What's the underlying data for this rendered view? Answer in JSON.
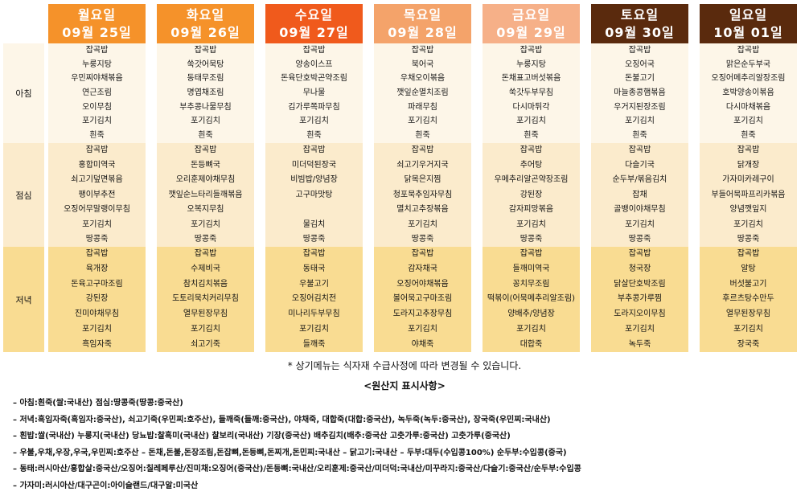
{
  "days": [
    {
      "day": "월요일",
      "date": "09월 25일",
      "header_color": "#f5922a",
      "breakfast": [
        "잡곡밥",
        "누룽지탕",
        "우민찌야채볶음",
        "연근조림",
        "오이무침",
        "포기김치",
        "흰죽"
      ],
      "lunch": [
        "잡곡밥",
        "홍합미역국",
        "쇠고기덮면볶음",
        "팽이부추전",
        "오징어무말랭이무침",
        "포기김치",
        "땅콩죽"
      ],
      "dinner": [
        "잡곡밥",
        "육개장",
        "돈육고구마조림",
        "강된장",
        "진미야채무침",
        "포기김치",
        "흑임자죽"
      ]
    },
    {
      "day": "화요일",
      "date": "09월 26일",
      "header_color": "#f5922a",
      "breakfast": [
        "잡곡밥",
        "쑥갓어묵탕",
        "동태무조림",
        "명엽채조림",
        "부추콩나물무침",
        "포기김치",
        "흰죽"
      ],
      "lunch": [
        "잡곡밥",
        "돈등뼈국",
        "오리훈제야채무침",
        "깻잎순느타리들깨볶음",
        "오복지무침",
        "포기김치",
        "땅콩죽"
      ],
      "dinner": [
        "잡곡밥",
        "수제비국",
        "참치김치볶음",
        "도토리묵치커리무침",
        "열무된장무침",
        "포기김치",
        "쇠고기죽"
      ]
    },
    {
      "day": "수요일",
      "date": "09월 27일",
      "header_color": "#f05a1c",
      "breakfast": [
        "잡곡밥",
        "양송이스프",
        "돈육단호박곤약조림",
        "무나물",
        "김가루쪽파무침",
        "포기김치",
        "흰죽"
      ],
      "lunch": [
        "잡곡밥",
        "미더덕된장국",
        "비빔밥/양념장",
        "고구마맛탕",
        "",
        "물김치",
        "땅콩죽"
      ],
      "dinner": [
        "잡곡밥",
        "동태국",
        "우불고기",
        "오징어김치전",
        "미나리두부무침",
        "포기김치",
        "들깨죽"
      ]
    },
    {
      "day": "목요일",
      "date": "09월 28일",
      "header_color": "#f4a36a",
      "breakfast": [
        "잡곡밥",
        "북어국",
        "우채오이볶음",
        "깻잎순멸치조림",
        "파래무침",
        "포기김치",
        "흰죽"
      ],
      "lunch": [
        "잡곡밥",
        "쇠고기우거지국",
        "닭목은지찜",
        "청포묵추임자무침",
        "멸치고추장볶음",
        "포기김치",
        "땅콩죽"
      ],
      "dinner": [
        "잡곡밥",
        "감자채국",
        "오징어야채볶음",
        "볼어묵고구마조림",
        "도라지고추장무침",
        "포기김치",
        "야채죽"
      ]
    },
    {
      "day": "금요일",
      "date": "09월 29일",
      "header_color": "#f6b088",
      "breakfast": [
        "잡곡밥",
        "누룽지탕",
        "돈채표고버섯볶음",
        "쑥갓두부무침",
        "다시마튀각",
        "포기김치",
        "흰죽"
      ],
      "lunch": [
        "잡곡밥",
        "추어탕",
        "우메추리알곤약장조림",
        "강된장",
        "감자피망볶음",
        "포기김치",
        "땅콩죽"
      ],
      "dinner": [
        "잡곡밥",
        "들깨미역국",
        "꽁치무조림",
        "떡볶이(어묵메추리알조림)",
        "양배추/양념장",
        "포기김치",
        "대합죽"
      ]
    },
    {
      "day": "토요일",
      "date": "09월 30일",
      "header_color": "#5a2a0d",
      "breakfast": [
        "잡곡밥",
        "오징어국",
        "돈불고기",
        "마늘종콩햄볶음",
        "우거지된장조림",
        "포기김치",
        "흰죽"
      ],
      "lunch": [
        "잡곡밥",
        "다슬기국",
        "순두부/볶음김치",
        "잡채",
        "골뱅이야채무침",
        "포기김치",
        "땅콩죽"
      ],
      "dinner": [
        "잡곡밥",
        "청국장",
        "닭살단호박조림",
        "부추콩가루찜",
        "도라지오이무침",
        "포기김치",
        "녹두죽"
      ]
    },
    {
      "day": "일요일",
      "date": "10월 01일",
      "header_color": "#5a2a0d",
      "breakfast": [
        "잡곡밥",
        "맑은순두부국",
        "오징어메추리알장조림",
        "호박양송이볶음",
        "다시마채볶음",
        "포기김치",
        "흰죽"
      ],
      "lunch": [
        "잡곡밥",
        "닭개장",
        "가자미카레구이",
        "부들어묵파프리카볶음",
        "양념깻잎지",
        "포기김치",
        "땅콩죽"
      ],
      "dinner": [
        "잡곡밥",
        "알탕",
        "버섯불고기",
        "후르츠탕수만두",
        "열무된장무침",
        "포기김치",
        "장국죽"
      ]
    }
  ],
  "meal_labels": {
    "breakfast": "아침",
    "lunch": "점심",
    "dinner": "저녁"
  },
  "colors": {
    "breakfast_bg": "#fdf6e8",
    "lunch_bg": "#fbebcc",
    "dinner_bg": "#f9dc92"
  },
  "notice": "* 상기메뉴는 식자재 수급사정에 따라 변경될 수 있습니다.",
  "origin_title": "<원산지 표시사항>",
  "origin_lines": [
    "– 아침:흰죽(쌀:국내산) 점심:땅콩죽(땅콩:중국산)",
    "– 저녁:흑임자죽(흑임자:중국산), 쇠고기죽(우민찌:호주산), 들깨죽(들깨:중국산), 야채죽, 대합죽(대합:중국산), 녹두죽(녹두:중국산), 장국죽(우민찌:국내산)",
    "– 흰밥:쌀(국내산) 누룽지(국내산) 당뇨밥:찰흑미(국내산) 찰보리(국내산) 기장(중국산) 배추김치(배추:중국산 고춧가루:중국산) 고춧가루(중국산)",
    "– 우불,우채,우장,우국,우민찌:호주산 – 돈채,돈불,돈장조림,돈잡뼈,돈등뼈,돈찌개,돈민찌:국내산 – 닭고기:국내산 – 두부:대두(수입콩100%) 순두부:수입콩(중국)",
    "– 동태:러시아산/홍합살:중국산/오징어:칠레페루산/진미채:오징어(중국산)/돈등뼈:국내산/오리훈제:중국산/미더덕:국내산/미꾸라지:중국산/다슬기:중국산/순두부:수입콩",
    "– 가자미:러시아산/대구곤이:아이슬랜드/대구알:미국산"
  ]
}
